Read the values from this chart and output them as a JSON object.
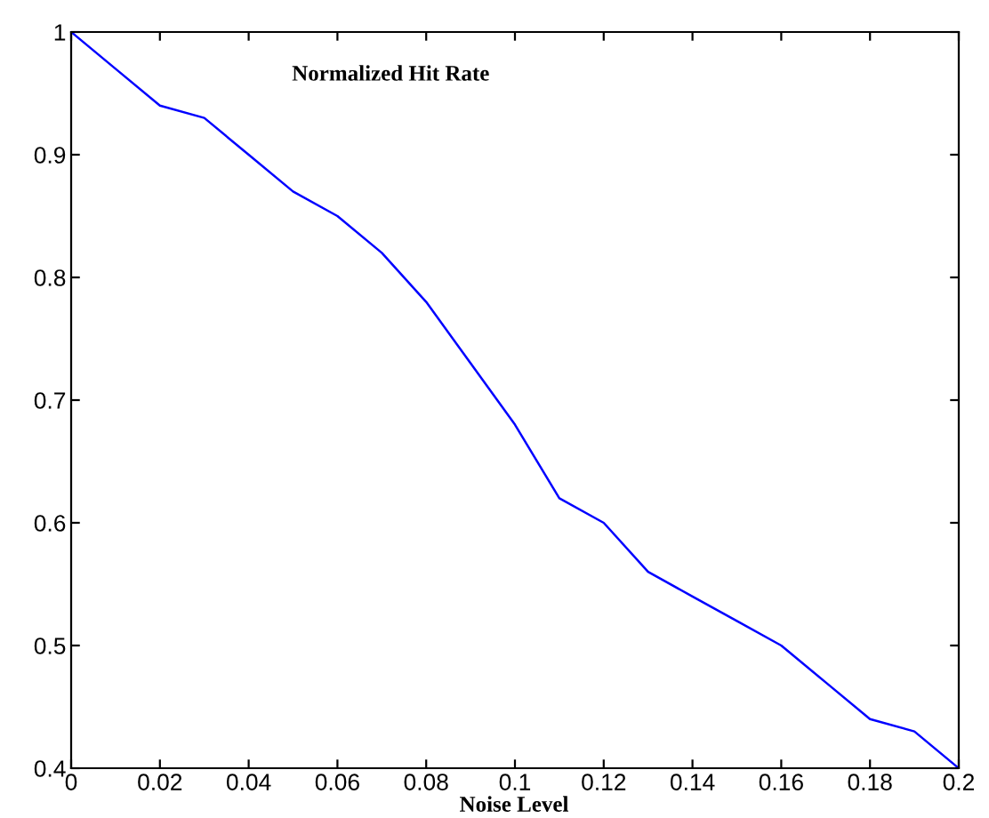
{
  "chart_data": {
    "type": "line",
    "title": "Normalized Hit Rate",
    "xlabel": "Noise Level",
    "x": [
      0,
      0.01,
      0.02,
      0.03,
      0.04,
      0.05,
      0.06,
      0.07,
      0.08,
      0.09,
      0.1,
      0.11,
      0.12,
      0.13,
      0.14,
      0.15,
      0.16,
      0.17,
      0.18,
      0.19,
      0.2
    ],
    "series": [
      {
        "color": "#0000ff",
        "values": [
          1.0,
          0.97,
          0.94,
          0.93,
          0.9,
          0.87,
          0.85,
          0.82,
          0.78,
          0.73,
          0.68,
          0.62,
          0.6,
          0.56,
          0.54,
          0.52,
          0.5,
          0.47,
          0.44,
          0.43,
          0.4
        ]
      }
    ],
    "xlim": [
      0,
      0.2
    ],
    "ylim": [
      0.4,
      1
    ],
    "xticks": [
      0,
      0.02,
      0.04,
      0.06,
      0.08,
      0.1,
      0.12,
      0.14,
      0.16,
      0.18,
      0.2
    ],
    "yticks": [
      0.4,
      0.5,
      0.6,
      0.7,
      0.8,
      0.9,
      1
    ],
    "grid": false,
    "legend": false,
    "marker": "none",
    "line_style": "solid"
  }
}
